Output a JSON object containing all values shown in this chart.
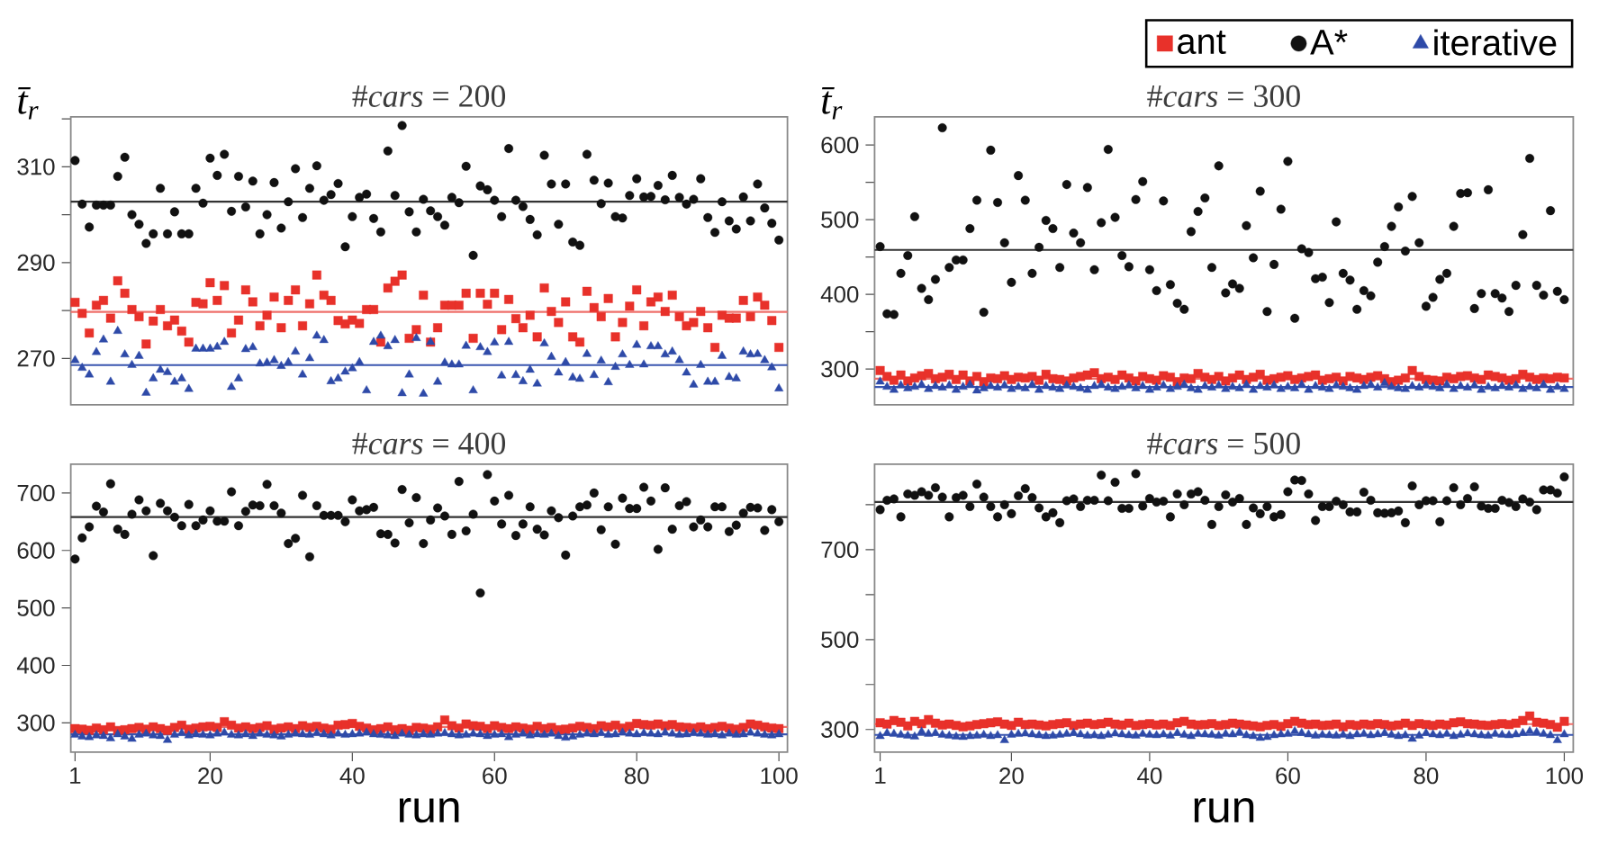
{
  "chart_data": [
    {
      "type": "scatter",
      "title": "#*cars* = 200",
      "ylabel": "t̄$_{r}$",
      "tick_labels": "y",
      "x": [
        1,
        2,
        3,
        4,
        5,
        6,
        7,
        8,
        9,
        10,
        11,
        12,
        13,
        14,
        15,
        16,
        17,
        18,
        19,
        20,
        21,
        22,
        23,
        24,
        25,
        26,
        27,
        28,
        29,
        30,
        31,
        32,
        33,
        34,
        35,
        36,
        37,
        38,
        39,
        40,
        41,
        42,
        43,
        44,
        45,
        46,
        47,
        48,
        49,
        50,
        51,
        52,
        53,
        54,
        55,
        56,
        57,
        58,
        59,
        60,
        61,
        62,
        63,
        64,
        65,
        66,
        67,
        68,
        69,
        70,
        71,
        72,
        73,
        74,
        75,
        76,
        77,
        78,
        79,
        80,
        81,
        82,
        83,
        84,
        85,
        86,
        87,
        88,
        89,
        90,
        91,
        92,
        93,
        94,
        95,
        96,
        97,
        98,
        99,
        100
      ],
      "xlim": [
        0.4,
        101.2
      ],
      "xticks": [
        1,
        20,
        40,
        60,
        80,
        100
      ],
      "ylim": [
        260.3,
        320.4
      ],
      "yticks": [
        270,
        {
          "value": 280,
          "label": null
        },
        290,
        {
          "value": 300,
          "label": null
        },
        310,
        {
          "value": 320,
          "label": null
        }
      ],
      "ref_lines": [
        {
          "axis": "y",
          "value": 302.7,
          "color": "#333333"
        },
        {
          "axis": "y",
          "value": 279.7,
          "color": "#ef6f6a"
        },
        {
          "axis": "y",
          "value": 268.6,
          "color": "#3a56b0"
        }
      ],
      "series": [
        {
          "color": "#e8312a",
          "marker": "square",
          "values": [
            281.7,
            279.4,
            275.3,
            281.1,
            282.1,
            278.4,
            286.2,
            283.6,
            280.2,
            278.7,
            273,
            277.8,
            280.2,
            276.8,
            278,
            275.7,
            273.4,
            281.7,
            281.4,
            285.8,
            282.1,
            285.2,
            275.3,
            278,
            284.3,
            281.8,
            276.8,
            279,
            282.8,
            276.4,
            282.1,
            284.3,
            276.8,
            281.4,
            287.4,
            283.2,
            282.1,
            277.9,
            277.2,
            278,
            277.3,
            280.2,
            280.2,
            273.4,
            284.7,
            286.1,
            287.4,
            274.2,
            276,
            283.2,
            273.4,
            276.4,
            281.1,
            281.1,
            281.1,
            283.6,
            274.2,
            283.6,
            281.3,
            283.6,
            276,
            282.3,
            278.3,
            276.4,
            279,
            274.5,
            284.7,
            279.8,
            277.5,
            281.8,
            274.5,
            273.4,
            284,
            280.6,
            278.7,
            282.5,
            274.5,
            277.5,
            280.9,
            284.3,
            276.8,
            281.8,
            282.8,
            279.8,
            283.2,
            278.7,
            276.8,
            277.5,
            279.8,
            276.4,
            272.3,
            279,
            278.4,
            278.4,
            282.1,
            278.7,
            282.8,
            281.1,
            277.9,
            272.3
          ]
        },
        {
          "color": "#111111",
          "marker": "circle",
          "values": [
            311.3,
            302.2,
            297.4,
            302,
            302,
            302,
            308,
            312,
            300,
            298,
            294,
            296,
            305.5,
            296,
            300.6,
            296,
            296,
            305.5,
            302.4,
            311.8,
            308.2,
            312.6,
            300.7,
            308,
            301.6,
            307,
            296,
            300,
            306.7,
            297.2,
            302.7,
            309.6,
            299.4,
            305.5,
            310.2,
            303,
            304.2,
            306.5,
            293.3,
            299.6,
            303.6,
            304.3,
            299.2,
            296.4,
            313.3,
            304,
            318.6,
            300.6,
            296.4,
            303.2,
            300.8,
            299.6,
            297.8,
            303.6,
            302.5,
            310.1,
            291.5,
            306,
            305.2,
            303,
            299.6,
            313.8,
            303,
            301.7,
            299,
            295.8,
            312.4,
            306.4,
            298,
            306.4,
            294.3,
            293.6,
            312.6,
            307.2,
            302.3,
            306.6,
            299.6,
            299.3,
            304,
            307.5,
            303.7,
            303.8,
            306.1,
            303.1,
            308.2,
            303.6,
            302.2,
            303.2,
            307.5,
            299.4,
            296.3,
            302.7,
            298.7,
            297,
            303.7,
            298.7,
            306.4,
            301.4,
            298.2,
            294.7
          ]
        },
        {
          "color": "#2e4aa8",
          "marker": "triangle",
          "values": [
            269.6,
            268,
            266.6,
            271.3,
            273.9,
            265.1,
            275.7,
            270.8,
            268.6,
            270.5,
            262.8,
            265.8,
            267.6,
            267.1,
            265.1,
            265.8,
            263.6,
            272,
            272,
            272,
            272.4,
            273.4,
            264,
            265.8,
            271.9,
            272.3,
            268.9,
            269.1,
            269.6,
            268.4,
            269.2,
            271.4,
            266.6,
            270,
            274.7,
            273.8,
            265.2,
            265.8,
            267.2,
            267.9,
            269.2,
            263.3,
            273.4,
            274.7,
            272.5,
            273.8,
            262.7,
            266.6,
            274.2,
            262.6,
            273.4,
            265.1,
            269.1,
            268.7,
            268.7,
            272.6,
            263.3,
            272.3,
            271.3,
            273.3,
            266.4,
            273.4,
            266.5,
            265.2,
            267.6,
            264.7,
            273.1,
            270.3,
            267,
            269.2,
            266,
            265.7,
            270.9,
            266.5,
            269.5,
            265,
            268.2,
            270.8,
            268.6,
            272.8,
            268.7,
            272.5,
            272.5,
            270.8,
            271.4,
            269.6,
            267,
            264.5,
            268.6,
            265.1,
            265.1,
            270.5,
            266.1,
            265.8,
            271.4,
            270.8,
            270.9,
            269.6,
            268.1,
            263.7
          ]
        }
      ]
    },
    {
      "type": "scatter",
      "title": "#*cars* = 300",
      "ylabel": "t̄$_{r}$",
      "tick_labels": "y",
      "legend": "top right",
      "x": [
        1,
        2,
        3,
        4,
        5,
        6,
        7,
        8,
        9,
        10,
        11,
        12,
        13,
        14,
        15,
        16,
        17,
        18,
        19,
        20,
        21,
        22,
        23,
        24,
        25,
        26,
        27,
        28,
        29,
        30,
        31,
        32,
        33,
        34,
        35,
        36,
        37,
        38,
        39,
        40,
        41,
        42,
        43,
        44,
        45,
        46,
        47,
        48,
        49,
        50,
        51,
        52,
        53,
        54,
        55,
        56,
        57,
        58,
        59,
        60,
        61,
        62,
        63,
        64,
        65,
        66,
        67,
        68,
        69,
        70,
        71,
        72,
        73,
        74,
        75,
        76,
        77,
        78,
        79,
        80,
        81,
        82,
        83,
        84,
        85,
        86,
        87,
        88,
        89,
        90,
        91,
        92,
        93,
        94,
        95,
        96,
        97,
        98,
        99,
        100
      ],
      "xlim": [
        0.2,
        101.3
      ],
      "xticks": [
        1,
        20,
        40,
        60,
        80,
        100
      ],
      "ylim": [
        252,
        637.5
      ],
      "yticks": [
        300,
        {
          "value": 350,
          "label": null
        },
        400,
        {
          "value": 450,
          "label": null
        },
        500,
        {
          "value": 550,
          "label": null
        },
        600
      ],
      "ref_lines": [
        {
          "axis": "y",
          "value": 459.5,
          "color": "#333333"
        },
        {
          "axis": "y",
          "value": 287,
          "color": "#ef6f6a"
        },
        {
          "axis": "y",
          "value": 276,
          "color": "#3a56b0"
        }
      ],
      "series": [
        {
          "name": "ant",
          "color": "#e8312a",
          "marker": "square",
          "values": [
            298,
            290,
            285,
            292,
            284,
            288,
            291,
            294,
            287,
            289,
            293,
            286,
            292,
            284,
            290,
            283,
            288,
            287,
            291,
            286,
            289,
            288,
            290,
            285,
            293,
            287,
            286,
            284,
            288,
            290,
            292,
            295,
            287,
            289,
            286,
            292,
            288,
            284,
            290,
            287,
            285,
            291,
            289,
            283,
            288,
            287,
            294,
            289,
            286,
            290,
            284,
            288,
            292,
            286,
            289,
            293,
            285,
            287,
            289,
            291,
            286,
            288,
            290,
            292,
            285,
            287,
            289,
            284,
            290,
            288,
            286,
            289,
            291,
            287,
            283,
            285,
            288,
            298,
            290,
            286,
            285,
            284,
            289,
            287,
            290,
            291,
            288,
            286,
            292,
            290,
            288,
            285,
            287,
            293,
            289,
            286,
            288,
            287,
            289,
            288
          ]
        },
        {
          "name": "A*",
          "color": "#111111",
          "marker": "circle",
          "values": [
            464,
            374,
            373,
            428,
            452,
            504,
            408,
            393,
            420,
            623,
            436,
            446,
            446,
            488,
            526,
            376,
            593,
            523,
            469,
            416,
            559,
            526,
            428,
            463,
            499,
            488,
            436,
            547,
            482,
            469,
            543,
            433,
            496,
            594,
            503,
            452,
            437,
            527,
            551,
            433,
            405,
            525,
            413,
            388,
            380,
            484,
            511,
            529,
            436,
            572,
            402,
            414,
            408,
            492,
            449,
            538,
            377,
            440,
            514,
            578,
            368,
            461,
            456,
            421,
            423,
            389,
            497,
            428,
            419,
            380,
            405,
            398,
            443,
            464,
            491,
            517,
            458,
            531,
            469,
            384,
            396,
            420,
            428,
            491,
            535,
            536,
            381,
            401,
            540,
            401,
            395,
            377,
            412,
            480,
            582,
            412,
            399,
            512,
            404,
            393
          ]
        },
        {
          "name": "iterative",
          "color": "#2e4aa8",
          "marker": "triangle",
          "values": [
            283,
            276,
            272,
            278,
            274,
            276,
            279,
            273,
            277,
            275,
            278,
            272,
            276,
            279,
            271,
            274,
            277,
            275,
            278,
            273,
            276,
            274,
            279,
            272,
            277,
            275,
            273,
            278,
            276,
            274,
            272,
            277,
            279,
            275,
            273,
            276,
            278,
            274,
            277,
            272,
            275,
            278,
            273,
            276,
            279,
            274,
            272,
            277,
            275,
            278,
            273,
            276,
            274,
            279,
            272,
            277,
            275,
            278,
            273,
            276,
            274,
            279,
            272,
            277,
            275,
            273,
            278,
            276,
            274,
            272,
            277,
            279,
            275,
            281,
            276,
            274,
            273,
            277,
            275,
            278,
            276,
            274,
            279,
            273,
            277,
            275,
            278,
            272,
            276,
            274,
            277,
            275,
            278,
            273,
            276,
            274,
            279,
            272,
            276,
            273
          ]
        }
      ]
    },
    {
      "type": "scatter",
      "title": "#*cars* = 400",
      "xlabel": "run",
      "x": [
        1,
        2,
        3,
        4,
        5,
        6,
        7,
        8,
        9,
        10,
        11,
        12,
        13,
        14,
        15,
        16,
        17,
        18,
        19,
        20,
        21,
        22,
        23,
        24,
        25,
        26,
        27,
        28,
        29,
        30,
        31,
        32,
        33,
        34,
        35,
        36,
        37,
        38,
        39,
        40,
        41,
        42,
        43,
        44,
        45,
        46,
        47,
        48,
        49,
        50,
        51,
        52,
        53,
        54,
        55,
        56,
        57,
        58,
        59,
        60,
        61,
        62,
        63,
        64,
        65,
        66,
        67,
        68,
        69,
        70,
        71,
        72,
        73,
        74,
        75,
        76,
        77,
        78,
        79,
        80,
        81,
        82,
        83,
        84,
        85,
        86,
        87,
        88,
        89,
        90,
        91,
        92,
        93,
        94,
        95,
        96,
        97,
        98,
        99,
        100
      ],
      "xlim": [
        0.4,
        101.2
      ],
      "xticks": [
        1,
        20,
        40,
        60,
        80,
        100
      ],
      "ylim": [
        249,
        750
      ],
      "yticks": [
        300,
        400,
        500,
        600,
        700
      ],
      "ref_lines": [
        {
          "axis": "y",
          "value": 658,
          "color": "#333333"
        },
        {
          "axis": "y",
          "value": 293,
          "color": "#ef6f6a"
        },
        {
          "axis": "y",
          "value": 280,
          "color": "#3a56b0"
        }
      ],
      "series": [
        {
          "color": "#e8312a",
          "marker": "square",
          "values": [
            290,
            289,
            287,
            291,
            288,
            293,
            286,
            288,
            290,
            292,
            289,
            293,
            290,
            287,
            292,
            296,
            289,
            291,
            293,
            294,
            292,
            302,
            296,
            291,
            293,
            290,
            292,
            295,
            289,
            291,
            293,
            290,
            295,
            292,
            294,
            291,
            289,
            296,
            297,
            299,
            294,
            291,
            288,
            290,
            293,
            288,
            290,
            287,
            292,
            291,
            289,
            293,
            305,
            295,
            291,
            298,
            295,
            294,
            290,
            295,
            292,
            290,
            293,
            291,
            289,
            294,
            290,
            292,
            288,
            289,
            291,
            294,
            292,
            290,
            295,
            293,
            296,
            291,
            294,
            299,
            297,
            296,
            298,
            295,
            297,
            293,
            292,
            291,
            293,
            290,
            292,
            294,
            291,
            289,
            292,
            298,
            296,
            293,
            291,
            290
          ]
        },
        {
          "color": "#111111",
          "marker": "circle",
          "values": [
            585,
            622,
            641,
            677,
            667,
            716,
            637,
            628,
            663,
            688,
            669,
            591,
            682,
            669,
            658,
            643,
            680,
            643,
            653,
            669,
            651,
            651,
            702,
            643,
            668,
            679,
            678,
            715,
            678,
            665,
            612,
            621,
            696,
            589,
            678,
            661,
            661,
            661,
            650,
            688,
            669,
            671,
            675,
            629,
            628,
            613,
            706,
            648,
            692,
            612,
            653,
            674,
            660,
            628,
            720,
            634,
            663,
            526,
            732,
            686,
            646,
            696,
            626,
            646,
            676,
            637,
            627,
            669,
            657,
            592,
            660,
            676,
            679,
            700,
            636,
            676,
            611,
            691,
            673,
            673,
            710,
            686,
            602,
            709,
            637,
            678,
            685,
            641,
            653,
            641,
            676,
            676,
            633,
            644,
            665,
            675,
            674,
            635,
            671,
            650
          ]
        },
        {
          "color": "#2e4aa8",
          "marker": "triangle",
          "values": [
            279,
            276,
            275,
            278,
            277,
            273,
            280,
            276,
            272,
            279,
            281,
            278,
            277,
            270,
            279,
            282,
            278,
            280,
            279,
            278,
            281,
            283,
            279,
            278,
            280,
            277,
            281,
            279,
            278,
            276,
            279,
            281,
            280,
            279,
            282,
            280,
            278,
            281,
            279,
            280,
            281,
            283,
            280,
            279,
            278,
            277,
            281,
            279,
            278,
            280,
            279,
            281,
            282,
            280,
            278,
            279,
            281,
            280,
            277,
            279,
            280,
            275,
            279,
            281,
            278,
            280,
            279,
            281,
            277,
            274,
            276,
            279,
            281,
            280,
            282,
            279,
            280,
            283,
            281,
            280,
            282,
            281,
            280,
            283,
            281,
            279,
            280,
            282,
            281,
            279,
            280,
            278,
            281,
            279,
            280,
            283,
            281,
            279,
            278,
            280
          ]
        }
      ]
    },
    {
      "type": "scatter",
      "title": "#*cars* = 500",
      "xlabel": "run",
      "x": [
        1,
        2,
        3,
        4,
        5,
        6,
        7,
        8,
        9,
        10,
        11,
        12,
        13,
        14,
        15,
        16,
        17,
        18,
        19,
        20,
        21,
        22,
        23,
        24,
        25,
        26,
        27,
        28,
        29,
        30,
        31,
        32,
        33,
        34,
        35,
        36,
        37,
        38,
        39,
        40,
        41,
        42,
        43,
        44,
        45,
        46,
        47,
        48,
        49,
        50,
        51,
        52,
        53,
        54,
        55,
        56,
        57,
        58,
        59,
        60,
        61,
        62,
        63,
        64,
        65,
        66,
        67,
        68,
        69,
        70,
        71,
        72,
        73,
        74,
        75,
        76,
        77,
        78,
        79,
        80,
        81,
        82,
        83,
        84,
        85,
        86,
        87,
        88,
        89,
        90,
        91,
        92,
        93,
        94,
        95,
        96,
        97,
        98,
        99,
        100
      ],
      "xlim": [
        0.2,
        101.3
      ],
      "xticks": [
        1,
        20,
        40,
        60,
        80,
        100
      ],
      "ylim": [
        249.5,
        890
      ],
      "yticks": [
        300,
        {
          "value": 400,
          "label": null
        },
        500,
        {
          "value": 600,
          "label": null
        },
        700,
        {
          "value": 800,
          "label": null
        }
      ],
      "ref_lines": [
        {
          "axis": "y",
          "value": 806,
          "color": "#333333"
        },
        {
          "axis": "y",
          "value": 312,
          "color": "#ef6f6a"
        },
        {
          "axis": "y",
          "value": 288,
          "color": "#3a56b0"
        }
      ],
      "series": [
        {
          "color": "#e8312a",
          "marker": "square",
          "values": [
            315,
            312,
            320,
            316,
            308,
            318,
            313,
            322,
            314,
            310,
            312,
            309,
            306,
            308,
            311,
            313,
            315,
            317,
            312,
            309,
            316,
            311,
            312,
            310,
            308,
            311,
            313,
            315,
            309,
            312,
            314,
            311,
            313,
            316,
            312,
            310,
            314,
            309,
            311,
            313,
            310,
            312,
            309,
            315,
            318,
            312,
            310,
            311,
            313,
            309,
            311,
            314,
            312,
            310,
            308,
            306,
            309,
            311,
            307,
            313,
            318,
            314,
            311,
            312,
            309,
            310,
            312,
            306,
            311,
            309,
            312,
            310,
            313,
            311,
            308,
            310,
            314,
            309,
            313,
            311,
            309,
            312,
            310,
            315,
            317,
            313,
            312,
            310,
            309,
            311,
            313,
            311,
            314,
            320,
            330,
            316,
            314,
            311,
            305,
            318
          ]
        },
        {
          "color": "#111111",
          "marker": "circle",
          "values": [
            789,
            810,
            813,
            773,
            824,
            821,
            829,
            821,
            838,
            817,
            773,
            816,
            821,
            796,
            846,
            817,
            796,
            773,
            800,
            780,
            820,
            836,
            816,
            793,
            773,
            782,
            760,
            809,
            813,
            796,
            810,
            810,
            866,
            809,
            850,
            792,
            792,
            869,
            797,
            814,
            806,
            808,
            773,
            824,
            800,
            824,
            829,
            810,
            756,
            796,
            822,
            806,
            814,
            756,
            793,
            780,
            796,
            773,
            778,
            829,
            855,
            854,
            824,
            765,
            796,
            796,
            808,
            800,
            784,
            784,
            828,
            810,
            782,
            781,
            782,
            786,
            760,
            842,
            800,
            809,
            809,
            762,
            809,
            838,
            800,
            814,
            840,
            797,
            792,
            792,
            810,
            805,
            796,
            813,
            806,
            789,
            833,
            833,
            826,
            862
          ]
        },
        {
          "color": "#2e4aa8",
          "marker": "triangle",
          "values": [
            285,
            292,
            290,
            288,
            286,
            284,
            295,
            290,
            292,
            288,
            286,
            284,
            283,
            285,
            286,
            288,
            285,
            287,
            276,
            288,
            290,
            291,
            289,
            287,
            285,
            286,
            288,
            290,
            292,
            289,
            286,
            287,
            285,
            288,
            291,
            289,
            287,
            286,
            290,
            288,
            287,
            289,
            286,
            292,
            288,
            285,
            290,
            289,
            288,
            286,
            290,
            289,
            294,
            287,
            285,
            281,
            283,
            287,
            289,
            290,
            296,
            292,
            289,
            286,
            288,
            287,
            286,
            288,
            285,
            289,
            290,
            287,
            289,
            292,
            288,
            285,
            287,
            279,
            286,
            292,
            289,
            287,
            290,
            285,
            288,
            291,
            289,
            287,
            286,
            290,
            288,
            287,
            289,
            292,
            296,
            294,
            290,
            287,
            276,
            289
          ]
        }
      ]
    }
  ]
}
